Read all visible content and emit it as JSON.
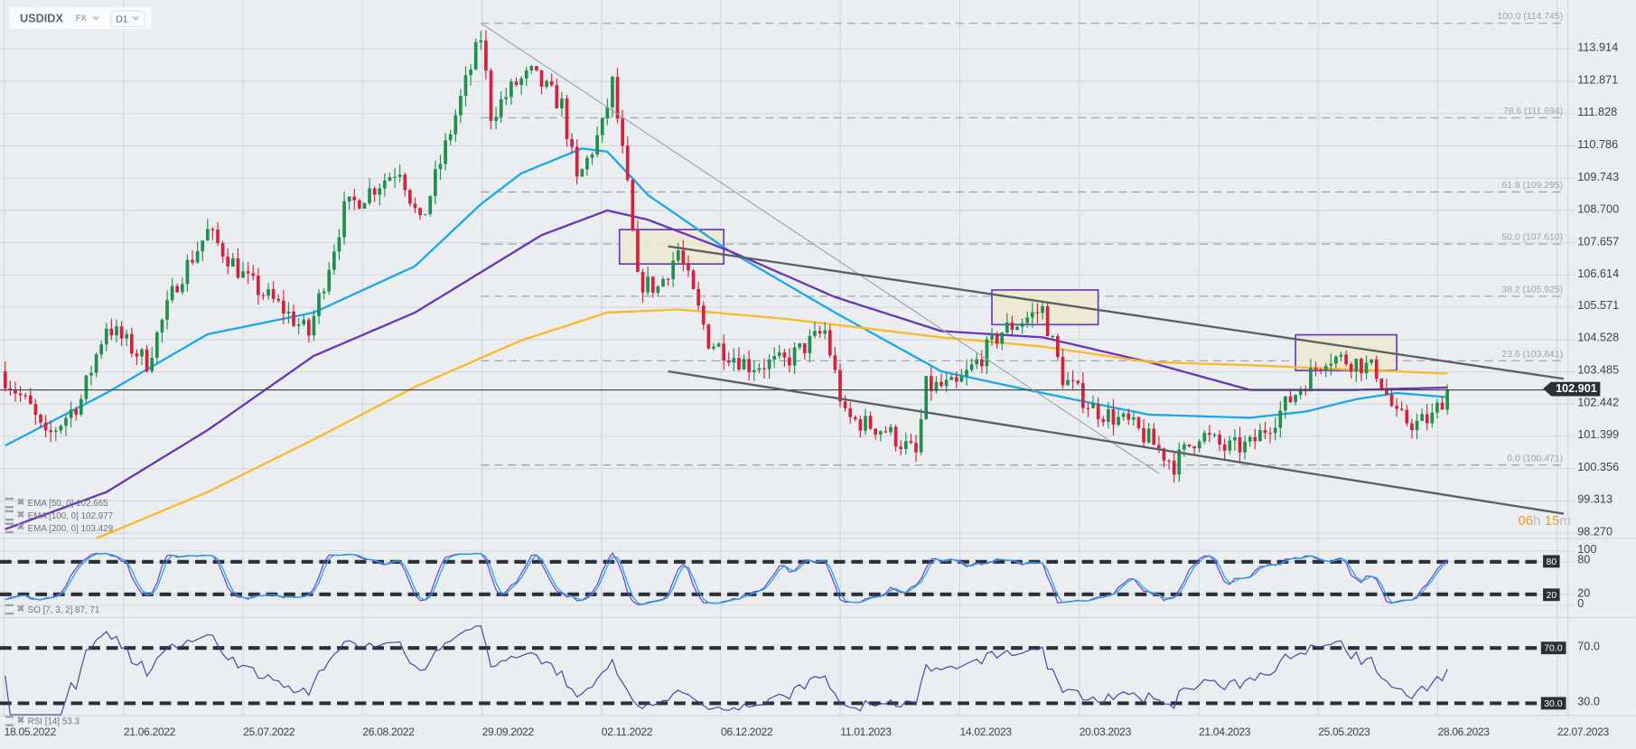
{
  "header": {
    "symbol": "USDIDX",
    "market": "FX",
    "timeframe": "D1"
  },
  "current_price": "102.901",
  "countdown": {
    "hours": "06",
    "h": "h",
    "minutes": "15",
    "m": "m"
  },
  "legends": {
    "ema50": "EMA [50,  0]  102.665",
    "ema100": "EMA [100,  0]  102.977",
    "ema200": "EMA [200,  0]  103.429",
    "so": "SO [7,  3,  2]  87,  71",
    "rsi": "RSI [14]  53.3"
  },
  "colors": {
    "up": "#1f8f4e",
    "down": "#d4213d",
    "ema50": "#1aa7ec",
    "ema100": "#6a35b8",
    "ema200": "#fbb829",
    "box_fill": "#ece9d0",
    "box_stroke": "#6a3fc4",
    "level_line": "#2a3036",
    "rsi": "#4b3fa8",
    "so_k": "#7a45c8",
    "so_d": "#1aa7ec"
  },
  "icons": [
    "dropdown-caret-icon",
    "legend-settings-icon",
    "legend-remove-icon"
  ],
  "chart_data": [
    {
      "type": "candlestick",
      "title": "USDIDX",
      "y_ticks": [
        "113.914",
        "112.871",
        "111.828",
        "110.786",
        "109.743",
        "108.700",
        "107.657",
        "106.614",
        "105.571",
        "104.528",
        "103.485",
        "102.442",
        "101.399",
        "100.356",
        "99.313",
        "98.270"
      ],
      "ylim": [
        98.27,
        113.914
      ],
      "x_ticks": [
        "18.05.2022",
        "21.06.2022",
        "25.07.2022",
        "26.08.2022",
        "29.09.2022",
        "02.11.2022",
        "06.12.2022",
        "11.01.2023",
        "14.02.2023",
        "20.03.2023",
        "21.04.2023",
        "25.05.2023",
        "28.06.2023",
        "22.07.2023"
      ],
      "grid": true,
      "close_keypoints_bar_price": [
        [
          0,
          103.3
        ],
        [
          5,
          102.3
        ],
        [
          8,
          101.3
        ],
        [
          15,
          102.6
        ],
        [
          20,
          105.0
        ],
        [
          28,
          103.8
        ],
        [
          34,
          106.4
        ],
        [
          40,
          108.0
        ],
        [
          48,
          106.4
        ],
        [
          55,
          105.5
        ],
        [
          60,
          104.7
        ],
        [
          67,
          108.7
        ],
        [
          78,
          110.1
        ],
        [
          82,
          108.2
        ],
        [
          91,
          112.8
        ],
        [
          94,
          114.3
        ],
        [
          96,
          111.8
        ],
        [
          101,
          112.8
        ],
        [
          104,
          113.1
        ],
        [
          110,
          112.1
        ],
        [
          113,
          109.6
        ],
        [
          118,
          111.4
        ],
        [
          120,
          112.8
        ],
        [
          123,
          109.4
        ],
        [
          125,
          106.4
        ],
        [
          129,
          106.2
        ],
        [
          133,
          107.4
        ],
        [
          139,
          104.5
        ],
        [
          147,
          103.7
        ],
        [
          154,
          103.8
        ],
        [
          162,
          104.8
        ],
        [
          166,
          102.0
        ],
        [
          174,
          101.6
        ],
        [
          180,
          100.8
        ],
        [
          182,
          103.0
        ],
        [
          188,
          103.0
        ],
        [
          197,
          104.8
        ],
        [
          205,
          105.5
        ],
        [
          209,
          103.3
        ],
        [
          215,
          102.3
        ],
        [
          222,
          101.8
        ],
        [
          226,
          101.3
        ],
        [
          231,
          100.5
        ],
        [
          236,
          101.5
        ],
        [
          241,
          101.0
        ],
        [
          246,
          101.1
        ],
        [
          252,
          102.2
        ],
        [
          257,
          103.2
        ],
        [
          261,
          104.0
        ],
        [
          267,
          103.8
        ],
        [
          271,
          103.5
        ],
        [
          275,
          102.0
        ],
        [
          279,
          101.8
        ],
        [
          282,
          102.0
        ],
        [
          285,
          102.9
        ]
      ],
      "series": [
        {
          "name": "EMA [50, 0]",
          "keypoints_bar_price": [
            [
              0,
              101.1
            ],
            [
              20,
              102.8
            ],
            [
              40,
              104.7
            ],
            [
              61,
              105.4
            ],
            [
              81,
              106.9
            ],
            [
              94,
              108.9
            ],
            [
              102,
              109.9
            ],
            [
              114,
              110.7
            ],
            [
              119,
              110.6
            ],
            [
              127,
              109.2
            ],
            [
              143,
              107.4
            ],
            [
              164,
              105.4
            ],
            [
              185,
              103.5
            ],
            [
              205,
              102.8
            ],
            [
              226,
              102.1
            ],
            [
              246,
              102.0
            ],
            [
              257,
              102.2
            ],
            [
              267,
              102.6
            ],
            [
              275,
              102.8
            ],
            [
              285,
              102.665
            ]
          ]
        },
        {
          "name": "EMA [100, 0]",
          "keypoints_bar_price": [
            [
              0,
              98.4
            ],
            [
              20,
              99.6
            ],
            [
              40,
              101.6
            ],
            [
              61,
              104.0
            ],
            [
              81,
              105.4
            ],
            [
              94,
              106.7
            ],
            [
              106,
              107.9
            ],
            [
              119,
              108.7
            ],
            [
              127,
              108.4
            ],
            [
              143,
              107.4
            ],
            [
              164,
              105.9
            ],
            [
              185,
              104.8
            ],
            [
              205,
              104.6
            ],
            [
              226,
              103.8
            ],
            [
              246,
              102.9
            ],
            [
              267,
              102.9
            ],
            [
              285,
              102.977
            ]
          ]
        },
        {
          "name": "EMA [200, 0]",
          "keypoints_bar_price": [
            [
              18,
              98.1
            ],
            [
              40,
              99.6
            ],
            [
              61,
              101.3
            ],
            [
              81,
              103.0
            ],
            [
              102,
              104.5
            ],
            [
              119,
              105.4
            ],
            [
              133,
              105.5
            ],
            [
              154,
              105.2
            ],
            [
              185,
              104.6
            ],
            [
              205,
              104.3
            ],
            [
              226,
              103.8
            ],
            [
              246,
              103.7
            ],
            [
              267,
              103.55
            ],
            [
              285,
              103.429
            ]
          ]
        }
      ],
      "fibonacci": [
        {
          "label": "100.0 (114.745)",
          "price": 114.745
        },
        {
          "label": "78.6 (111.694)",
          "price": 111.694
        },
        {
          "label": "61.8 (109.295)",
          "price": 109.295
        },
        {
          "label": "50.0 (107.610)",
          "price": 107.61
        },
        {
          "label": "38.2 (105.925)",
          "price": 105.925
        },
        {
          "label": "23.6 (103.841)",
          "price": 103.841
        },
        {
          "label": "0.0 (100.471)",
          "price": 100.471
        }
      ],
      "trendlines_bar_price": [
        {
          "from": [
            94,
            114.75
          ],
          "to": [
            228,
            100.2
          ],
          "style": "thin"
        },
        {
          "from": [
            131,
            107.54
          ],
          "to": [
            308,
            103.26
          ],
          "style": "channel"
        },
        {
          "from": [
            131,
            103.5
          ],
          "to": [
            308,
            98.9
          ],
          "style": "channel"
        }
      ],
      "boxes_bar_price": [
        {
          "bars": [
            121.4,
            142
          ],
          "prices": [
            108.08,
            106.97
          ]
        },
        {
          "bars": [
            195,
            216
          ],
          "prices": [
            106.13,
            105.01
          ]
        },
        {
          "bars": [
            255,
            275
          ],
          "prices": [
            104.68,
            103.53
          ]
        }
      ]
    },
    {
      "type": "line",
      "title": "SO [7, 3, 2]",
      "ylim": [
        0,
        100
      ],
      "y_ticks": [
        "100",
        "80",
        "20",
        "0"
      ],
      "levels": [
        "80",
        "20"
      ],
      "last_values": [
        87,
        71
      ]
    },
    {
      "type": "line",
      "title": "RSI [14]",
      "y_ticks": [
        "70.0",
        "30.0"
      ],
      "levels": [
        "70.0",
        "30.0"
      ],
      "last_value": 53.3
    }
  ]
}
